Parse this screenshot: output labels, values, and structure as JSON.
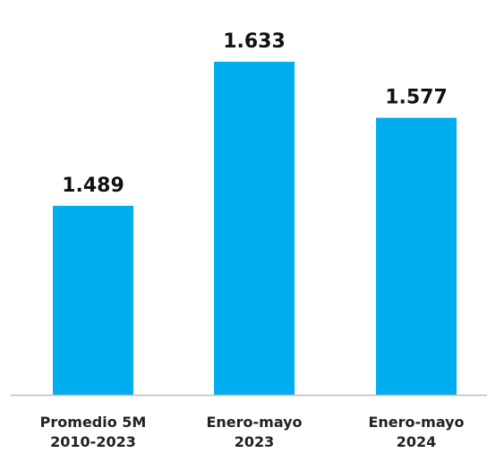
{
  "chart_data": {
    "type": "bar",
    "categories": [
      [
        "Promedio 5M",
        "2010-2023"
      ],
      [
        "Enero-mayo",
        "2023"
      ],
      [
        "Enero-mayo",
        "2024"
      ]
    ],
    "values": [
      1489,
      1633,
      1577
    ],
    "value_labels": [
      "1.489",
      "1.633",
      "1.577"
    ],
    "title": "",
    "xlabel": "",
    "ylabel": "",
    "ylim": [
      1300,
      1650
    ],
    "grid": false,
    "legend": "none",
    "bar_color": "#00AEEF",
    "axis_color": "#BDBDBD",
    "label_color": "#111111"
  }
}
